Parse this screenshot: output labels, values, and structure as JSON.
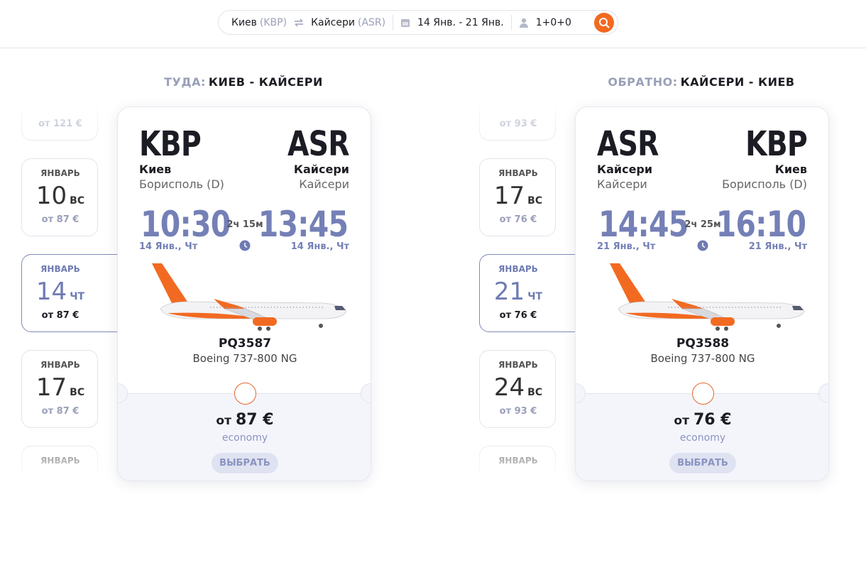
{
  "search": {
    "from_city": "Киев",
    "from_code": "(KBP)",
    "to_city": "Кайсери",
    "to_code": "(ASR)",
    "dates": "14 Янв. - 21 Янв.",
    "passengers": "1+0+0"
  },
  "legs": [
    {
      "label": "ТУДА:",
      "route": "КИЕВ - КАЙСЕРИ",
      "dates": [
        {
          "price": "от 121 €"
        },
        {
          "month": "ЯНВАРЬ",
          "day": "10",
          "weekday": "ВС",
          "price": "от 87 €"
        },
        {
          "month": "ЯНВАРЬ",
          "day": "14",
          "weekday": "ЧТ",
          "price": "от 87 €",
          "selected": true
        },
        {
          "month": "ЯНВАРЬ",
          "day": "17",
          "weekday": "ВС",
          "price": "от 87 €"
        },
        {
          "month": "ЯНВАРЬ"
        }
      ],
      "flight": {
        "from_code": "KBP",
        "from_city": "Киев",
        "from_airport": "Борисполь (D)",
        "to_code": "ASR",
        "to_city": "Кайсери",
        "to_airport": "Кайсери",
        "dep_time": "10:30",
        "dep_date": "14 Янв., Чт",
        "duration": "2ч 15м",
        "arr_time": "13:45",
        "arr_date": "14 Янв., Чт",
        "number": "PQ3587",
        "aircraft": "Boeing 737-800 NG",
        "price_prefix": "от",
        "price": "87 €",
        "class": "economy",
        "button": "ВЫБРАТЬ"
      }
    },
    {
      "label": "ОБРАТНО:",
      "route": "КАЙСЕРИ - КИЕВ",
      "dates": [
        {
          "price": "от 93 €"
        },
        {
          "month": "ЯНВАРЬ",
          "day": "17",
          "weekday": "ВС",
          "price": "от 76 €"
        },
        {
          "month": "ЯНВАРЬ",
          "day": "21",
          "weekday": "ЧТ",
          "price": "от 76 €",
          "selected": true
        },
        {
          "month": "ЯНВАРЬ",
          "day": "24",
          "weekday": "ВС",
          "price": "от 93 €"
        },
        {
          "month": "ЯНВАРЬ"
        }
      ],
      "flight": {
        "from_code": "ASR",
        "from_city": "Кайсери",
        "from_airport": "Кайсери",
        "to_code": "KBP",
        "to_city": "Киев",
        "to_airport": "Борисполь (D)",
        "dep_time": "14:45",
        "dep_date": "21 Янв., Чт",
        "duration": "2ч 25м",
        "arr_time": "16:10",
        "arr_date": "21 Янв., Чт",
        "number": "PQ3588",
        "aircraft": "Boeing 737-800 NG",
        "price_prefix": "от",
        "price": "76 €",
        "class": "economy",
        "button": "ВЫБРАТЬ"
      }
    }
  ]
}
